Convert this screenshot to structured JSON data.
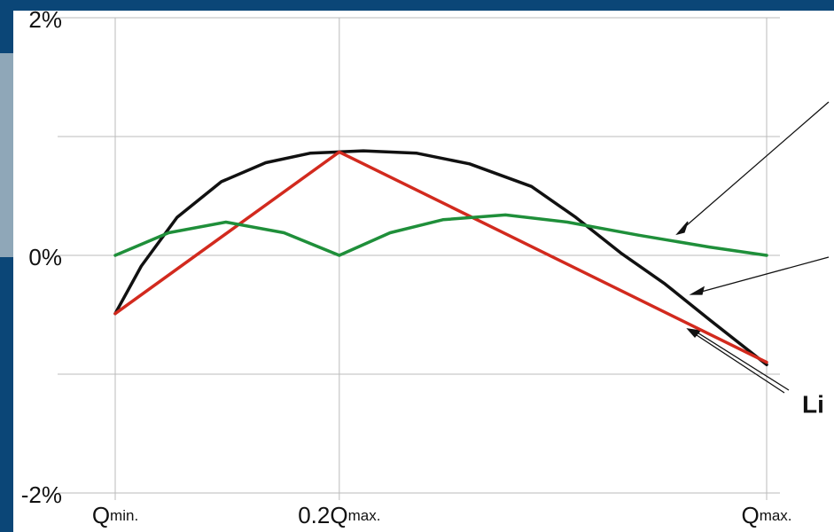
{
  "chart_data": {
    "type": "line",
    "xlim": [
      0,
      1
    ],
    "ylim": [
      -2,
      2
    ],
    "xticks": [
      {
        "value": 0,
        "label": "Q",
        "subscript": "min."
      },
      {
        "value": 0.344,
        "label": "0.2Q",
        "subscript": "max."
      },
      {
        "value": 1,
        "label": "Q",
        "subscript": "max."
      }
    ],
    "yticks": [
      {
        "value": -2,
        "label": "-2%"
      },
      {
        "value": -1,
        "label": null
      },
      {
        "value": 0,
        "label": "0%"
      },
      {
        "value": 1,
        "label": null
      },
      {
        "value": 2,
        "label": "2%"
      }
    ],
    "grid": true,
    "series": [
      {
        "color": "#111111",
        "x": [
          0,
          0.04,
          0.095,
          0.163,
          0.231,
          0.299,
          0.381,
          0.463,
          0.544,
          0.639,
          0.707,
          0.776,
          0.844,
          0.912,
          1
        ],
        "values": [
          -0.49,
          -0.09,
          0.32,
          0.62,
          0.78,
          0.86,
          0.88,
          0.86,
          0.77,
          0.58,
          0.32,
          0.02,
          -0.24,
          -0.54,
          -0.92
        ]
      },
      {
        "color": "#d22a1e",
        "x": [
          0,
          0.344,
          1
        ],
        "values": [
          -0.49,
          0.87,
          -0.9
        ]
      },
      {
        "color": "#1f8f3a",
        "x": [
          0,
          0.082,
          0.17,
          0.259,
          0.344,
          0.422,
          0.503,
          0.599,
          0.694,
          0.803,
          0.912,
          1
        ],
        "values": [
          0,
          0.19,
          0.28,
          0.19,
          0,
          0.19,
          0.3,
          0.34,
          0.28,
          0.17,
          0.07,
          0
        ]
      }
    ],
    "annotations": [
      {
        "text": "Li",
        "color": "#e00000"
      }
    ]
  }
}
